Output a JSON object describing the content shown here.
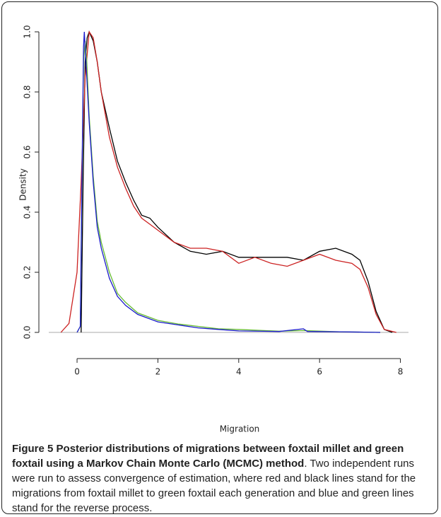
{
  "chart_data": {
    "type": "line",
    "x_label": "Migration",
    "y_label": "Density",
    "xlim": [
      -0.7,
      8.2
    ],
    "ylim": [
      -0.04,
      1.04
    ],
    "xticks": [
      0,
      2,
      4,
      6,
      8
    ],
    "yticks": [
      {
        "value": 0,
        "label": "0.0"
      },
      {
        "value": 0.2,
        "label": "0.2"
      },
      {
        "value": 0.4,
        "label": "0.4"
      },
      {
        "value": 0.6,
        "label": "0.6"
      },
      {
        "value": 0.8,
        "label": "0.8"
      },
      {
        "value": 1,
        "label": "1.0"
      }
    ],
    "baseline": 0,
    "baseline_color": "#aaaaaa",
    "series": [
      {
        "color": "#000000",
        "x": [
          0.1,
          0.15,
          0.2,
          0.25,
          0.3,
          0.4,
          0.5,
          0.6,
          0.8,
          1.0,
          1.2,
          1.4,
          1.6,
          1.8,
          2.0,
          2.4,
          2.8,
          3.2,
          3.6,
          4.0,
          4.4,
          4.8,
          5.2,
          5.6,
          6.0,
          6.4,
          6.8,
          7.0,
          7.2,
          7.4,
          7.6,
          7.8
        ],
        "values": [
          0,
          0.5,
          0.9,
          0.98,
          1.0,
          0.97,
          0.9,
          0.8,
          0.68,
          0.57,
          0.5,
          0.44,
          0.39,
          0.38,
          0.35,
          0.3,
          0.27,
          0.26,
          0.27,
          0.25,
          0.25,
          0.25,
          0.25,
          0.24,
          0.27,
          0.28,
          0.26,
          0.24,
          0.17,
          0.07,
          0.01,
          0
        ]
      },
      {
        "color": "#cc2222",
        "x": [
          -0.4,
          -0.2,
          0,
          0.1,
          0.2,
          0.3,
          0.4,
          0.5,
          0.6,
          0.8,
          1.0,
          1.2,
          1.4,
          1.6,
          1.8,
          2.0,
          2.4,
          2.8,
          3.2,
          3.6,
          4.0,
          4.4,
          4.8,
          5.2,
          5.6,
          6.0,
          6.4,
          6.8,
          7.0,
          7.2,
          7.4,
          7.6,
          7.9
        ],
        "values": [
          0,
          0.03,
          0.2,
          0.5,
          0.85,
          1.0,
          0.98,
          0.9,
          0.8,
          0.65,
          0.55,
          0.48,
          0.42,
          0.38,
          0.36,
          0.34,
          0.3,
          0.28,
          0.28,
          0.27,
          0.23,
          0.25,
          0.23,
          0.22,
          0.24,
          0.26,
          0.24,
          0.23,
          0.21,
          0.15,
          0.06,
          0.01,
          0
        ]
      },
      {
        "color": "#66bb33",
        "x": [
          0,
          0.08,
          0.12,
          0.16,
          0.2,
          0.24,
          0.3,
          0.4,
          0.5,
          0.6,
          0.8,
          1.0,
          1.2,
          1.5,
          2.0,
          2.5,
          3.0,
          3.5,
          4.0,
          5.0,
          5.6,
          6.5,
          7.5
        ],
        "values": [
          0,
          0.02,
          0.45,
          0.9,
          0.97,
          0.9,
          0.72,
          0.52,
          0.37,
          0.3,
          0.2,
          0.13,
          0.1,
          0.065,
          0.04,
          0.028,
          0.02,
          0.012,
          0.01,
          0.004,
          0.006,
          0.002,
          0
        ]
      },
      {
        "color": "#1a1acc",
        "x": [
          0,
          0.08,
          0.12,
          0.16,
          0.18,
          0.22,
          0.3,
          0.4,
          0.5,
          0.6,
          0.8,
          1.0,
          1.2,
          1.5,
          2.0,
          2.5,
          3.0,
          3.5,
          4.0,
          5.0,
          5.6,
          5.7,
          6.5,
          7.5
        ],
        "values": [
          0,
          0.02,
          0.5,
          0.95,
          1.0,
          0.9,
          0.7,
          0.5,
          0.35,
          0.28,
          0.18,
          0.12,
          0.09,
          0.06,
          0.035,
          0.025,
          0.015,
          0.01,
          0.005,
          0.003,
          0.012,
          0.003,
          0.002,
          0
        ]
      }
    ]
  },
  "caption": {
    "label": "Figure 5",
    "title": "Posterior distributions of migrations between foxtail millet and green foxtail using a Markov Chain Monte Carlo (MCMC) method",
    "text": ". Two independent runs were run to assess convergence of estimation, where red and black lines stand for the migrations from foxtail millet to green foxtail each generation and blue and green lines stand for the reverse process."
  }
}
